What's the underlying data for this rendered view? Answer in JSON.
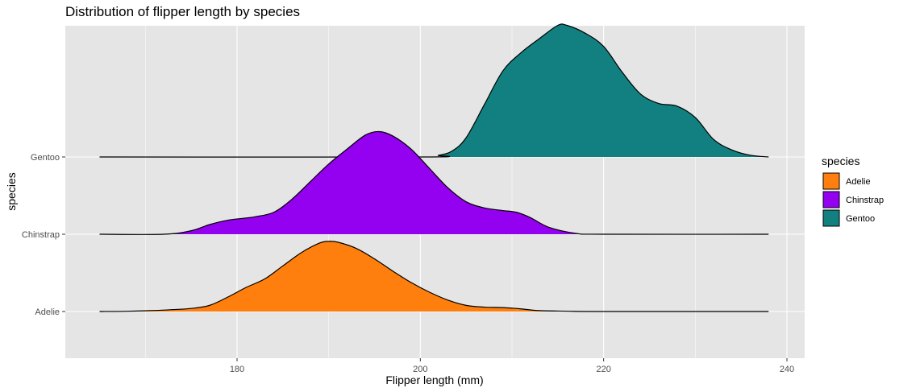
{
  "chart_data": {
    "type": "ridgeline-density",
    "title": "Distribution of flipper length by species",
    "xlabel": "Flipper length (mm)",
    "ylabel": "species",
    "xlim": [
      162,
      241
    ],
    "x_ticks": [
      180,
      200,
      220,
      240
    ],
    "x_range": [
      165,
      238
    ],
    "y_categories": [
      "Adelie",
      "Chinstrap",
      "Gentoo"
    ],
    "grid": true,
    "legend": {
      "title": "species",
      "position": "right",
      "entries": [
        "Adelie",
        "Chinstrap",
        "Gentoo"
      ]
    },
    "colors": {
      "Adelie": "#FF7F0E",
      "Chinstrap": "#9400F0",
      "Gentoo": "#128080",
      "panel": "#E5E5E5",
      "grid": "#FFFFFF",
      "outline": "#000000"
    },
    "series": [
      {
        "name": "Adelie",
        "x": [
          165,
          168,
          171,
          173,
          175,
          177,
          179,
          181,
          183,
          185,
          187,
          189,
          190,
          191,
          193,
          195,
          197,
          199,
          201,
          203,
          205,
          207,
          209,
          211,
          213,
          216,
          220,
          238
        ],
        "density": [
          0.0,
          0.003,
          0.012,
          0.022,
          0.035,
          0.07,
          0.165,
          0.275,
          0.37,
          0.52,
          0.67,
          0.78,
          0.8,
          0.79,
          0.72,
          0.6,
          0.46,
          0.33,
          0.22,
          0.13,
          0.07,
          0.05,
          0.045,
          0.03,
          0.01,
          0.004,
          0.0,
          0.0
        ]
      },
      {
        "name": "Chinstrap",
        "x": [
          165,
          172,
          175,
          177,
          179,
          181,
          182,
          184,
          186,
          188,
          190,
          192,
          194,
          195.5,
          197,
          199,
          201,
          203,
          205,
          207,
          209,
          210.5,
          212,
          214,
          217,
          220,
          238
        ],
        "density": [
          0.0,
          0.0,
          0.04,
          0.11,
          0.16,
          0.185,
          0.2,
          0.25,
          0.4,
          0.6,
          0.8,
          0.97,
          1.13,
          1.17,
          1.12,
          0.97,
          0.75,
          0.53,
          0.37,
          0.3,
          0.27,
          0.25,
          0.19,
          0.08,
          0.01,
          0.0,
          0.0
        ]
      },
      {
        "name": "Gentoo",
        "x": [
          165,
          200,
          202,
          203.5,
          205,
          207,
          209,
          211,
          213,
          215,
          216,
          218,
          220,
          222,
          224,
          226,
          228,
          230,
          232,
          234,
          236,
          238
        ],
        "density": [
          0.0,
          0.0,
          0.02,
          0.07,
          0.22,
          0.6,
          0.98,
          1.19,
          1.35,
          1.5,
          1.5,
          1.41,
          1.26,
          0.97,
          0.72,
          0.61,
          0.58,
          0.45,
          0.2,
          0.08,
          0.02,
          0.0
        ]
      }
    ]
  }
}
